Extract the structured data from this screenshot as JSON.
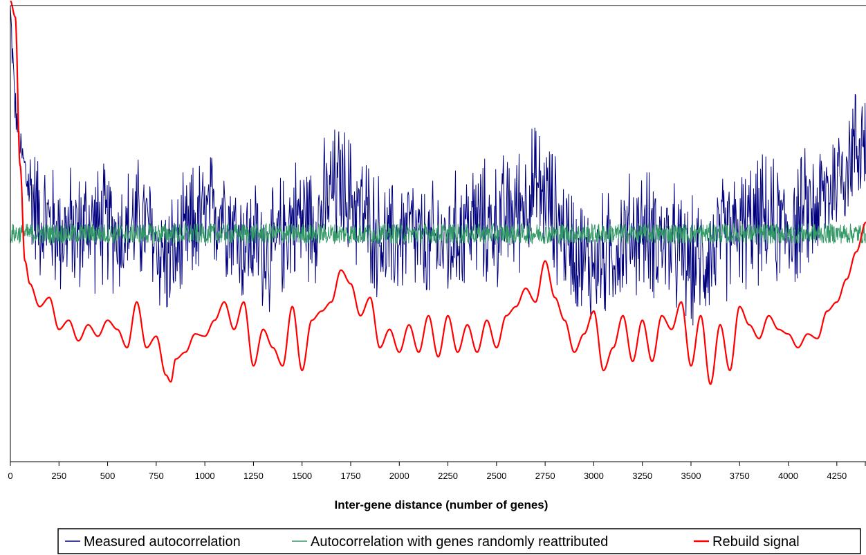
{
  "chart_data": {
    "type": "line",
    "title": "",
    "xlabel": "Inter-gene distance (number of genes)",
    "ylabel": "",
    "xlim": [
      0,
      4400
    ],
    "ylim": [
      -1,
      1
    ],
    "x_ticks": [
      "0",
      "250",
      "500",
      "750",
      "1000",
      "1250",
      "1500",
      "1750",
      "2000",
      "2250",
      "2500",
      "2750",
      "3000",
      "3250",
      "3500",
      "3750",
      "4000",
      "4250"
    ],
    "y_axis_tick_labels": "none shown",
    "grid": false,
    "legend_position": "bottom",
    "series": [
      {
        "name": "Measured autocorrelation",
        "color": "#00007f",
        "style": "noisy line",
        "x": [
          0,
          25,
          50,
          100,
          150,
          200,
          250,
          300,
          350,
          400,
          450,
          500,
          550,
          600,
          650,
          700,
          750,
          800,
          850,
          900,
          950,
          1000,
          1050,
          1100,
          1150,
          1200,
          1250,
          1300,
          1350,
          1400,
          1450,
          1500,
          1550,
          1600,
          1650,
          1700,
          1750,
          1800,
          1850,
          1900,
          1950,
          2000,
          2050,
          2100,
          2150,
          2200,
          2250,
          2300,
          2350,
          2400,
          2450,
          2500,
          2550,
          2600,
          2650,
          2700,
          2750,
          2800,
          2850,
          2900,
          2950,
          3000,
          3050,
          3100,
          3150,
          3200,
          3250,
          3300,
          3350,
          3400,
          3450,
          3500,
          3550,
          3600,
          3650,
          3700,
          3750,
          3800,
          3850,
          3900,
          3950,
          4000,
          4050,
          4100,
          4150,
          4200,
          4250,
          4300,
          4350,
          4400
        ],
        "y": [
          0.97,
          0.55,
          0.38,
          0.2,
          0.08,
          0.05,
          0.0,
          0.02,
          0.0,
          0.05,
          0.03,
          0.04,
          0.0,
          0.02,
          0.06,
          0.03,
          -0.05,
          -0.12,
          -0.1,
          -0.03,
          0.05,
          0.06,
          0.1,
          0.12,
          0.02,
          -0.05,
          -0.03,
          -0.06,
          -0.1,
          0.0,
          0.06,
          0.08,
          0.06,
          0.1,
          0.18,
          0.22,
          0.16,
          0.1,
          0.05,
          -0.02,
          -0.06,
          -0.02,
          0.03,
          -0.05,
          -0.08,
          -0.02,
          -0.06,
          0.0,
          0.05,
          0.06,
          0.03,
          0.04,
          0.08,
          0.1,
          0.16,
          0.2,
          0.17,
          0.08,
          0.0,
          -0.05,
          -0.12,
          -0.14,
          -0.1,
          -0.08,
          -0.03,
          0.0,
          0.02,
          0.0,
          -0.03,
          -0.06,
          -0.1,
          -0.14,
          -0.12,
          -0.08,
          -0.04,
          0.0,
          0.02,
          0.03,
          0.06,
          0.05,
          0.04,
          0.03,
          0.05,
          0.1,
          0.12,
          0.18,
          0.25,
          0.32,
          0.38,
          0.45
        ]
      },
      {
        "name": "Autocorrelation with genes randomly reattributed",
        "color": "#339966",
        "style": "noisy line",
        "x": [
          0,
          4400
        ],
        "y": [
          0.0,
          0.0
        ]
      },
      {
        "name": "Rebuild signal",
        "color": "#ff0000",
        "style": "smooth line",
        "x": [
          0,
          25,
          50,
          75,
          100,
          150,
          200,
          250,
          300,
          350,
          400,
          450,
          500,
          550,
          600,
          650,
          700,
          750,
          800,
          825,
          850,
          900,
          950,
          1000,
          1050,
          1100,
          1150,
          1200,
          1250,
          1300,
          1350,
          1400,
          1450,
          1500,
          1550,
          1600,
          1650,
          1700,
          1750,
          1800,
          1850,
          1900,
          1950,
          2000,
          2050,
          2100,
          2150,
          2200,
          2250,
          2300,
          2350,
          2400,
          2450,
          2500,
          2550,
          2600,
          2650,
          2700,
          2750,
          2800,
          2850,
          2900,
          2950,
          3000,
          3050,
          3100,
          3150,
          3200,
          3250,
          3300,
          3350,
          3400,
          3450,
          3500,
          3550,
          3600,
          3650,
          3700,
          3750,
          3800,
          3850,
          3900,
          3950,
          4000,
          4050,
          4100,
          4150,
          4200,
          4250,
          4300,
          4350,
          4400
        ],
        "y": [
          1.02,
          0.95,
          0.3,
          -0.12,
          -0.22,
          -0.32,
          -0.28,
          -0.42,
          -0.38,
          -0.47,
          -0.4,
          -0.45,
          -0.38,
          -0.42,
          -0.5,
          -0.3,
          -0.5,
          -0.45,
          -0.62,
          -0.65,
          -0.55,
          -0.52,
          -0.44,
          -0.45,
          -0.38,
          -0.3,
          -0.42,
          -0.3,
          -0.58,
          -0.42,
          -0.5,
          -0.58,
          -0.32,
          -0.6,
          -0.38,
          -0.34,
          -0.3,
          -0.16,
          -0.22,
          -0.36,
          -0.28,
          -0.5,
          -0.42,
          -0.52,
          -0.4,
          -0.52,
          -0.36,
          -0.54,
          -0.36,
          -0.52,
          -0.4,
          -0.52,
          -0.38,
          -0.5,
          -0.36,
          -0.32,
          -0.24,
          -0.3,
          -0.12,
          -0.28,
          -0.38,
          -0.52,
          -0.44,
          -0.34,
          -0.6,
          -0.5,
          -0.36,
          -0.56,
          -0.38,
          -0.56,
          -0.36,
          -0.42,
          -0.3,
          -0.58,
          -0.36,
          -0.66,
          -0.4,
          -0.6,
          -0.32,
          -0.4,
          -0.46,
          -0.36,
          -0.42,
          -0.44,
          -0.5,
          -0.44,
          -0.46,
          -0.34,
          -0.3,
          -0.2,
          -0.08,
          0.05
        ]
      }
    ]
  }
}
